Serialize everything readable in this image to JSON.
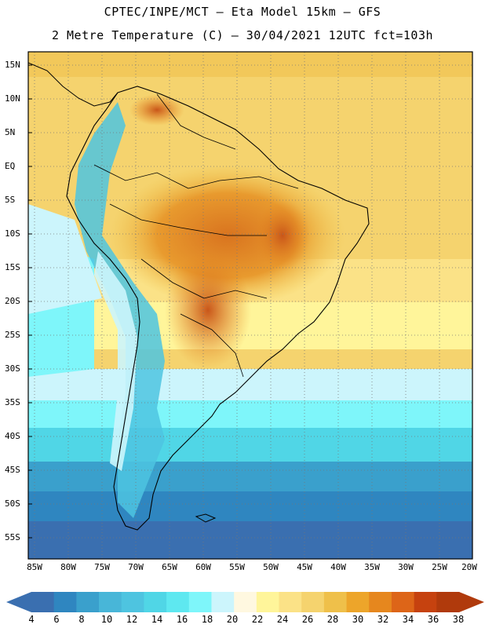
{
  "title": {
    "line1": "CPTEC/INPE/MCT —  Eta Model 15km — GFS",
    "line2": "2 Metre Temperature (C) — 30/04/2021 12UTC fct=103h"
  },
  "lat_labels": [
    "15N",
    "10N",
    "5N",
    "EQ",
    "5S",
    "10S",
    "15S",
    "20S",
    "25S",
    "30S",
    "35S",
    "40S",
    "45S",
    "50S",
    "55S"
  ],
  "lon_labels": [
    "85W",
    "80W",
    "75W",
    "70W",
    "65W",
    "60W",
    "55W",
    "50W",
    "45W",
    "40W",
    "35W",
    "30W",
    "25W",
    "20W"
  ],
  "colorbar": {
    "labels": [
      "4",
      "6",
      "8",
      "10",
      "12",
      "14",
      "16",
      "18",
      "20",
      "22",
      "24",
      "26",
      "28",
      "30",
      "32",
      "34",
      "36",
      "38"
    ],
    "colors": [
      "#3a6fb0",
      "#2f86c0",
      "#3aa0cc",
      "#48b6d8",
      "#4ec4e0",
      "#50d6e6",
      "#5ee8f0",
      "#7ef6fa",
      "#ccf5fc",
      "#fff8e0",
      "#fff59a",
      "#fbe287",
      "#f5d36e",
      "#efc04a",
      "#eda52a",
      "#e6871e",
      "#dd6518",
      "#c6420f",
      "#b03a0c"
    ],
    "end_left": "#3a6fb0",
    "end_right": "#b03a0c"
  }
}
